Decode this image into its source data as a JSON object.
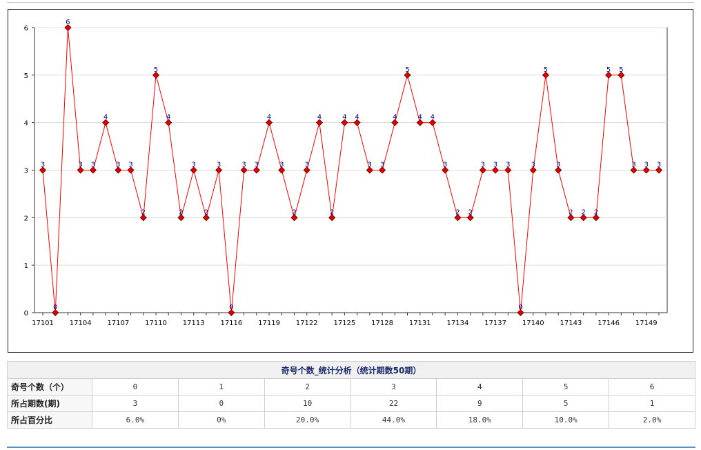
{
  "chart_data": {
    "type": "line",
    "x": [
      "17101",
      "17102",
      "17103",
      "17104",
      "17105",
      "17106",
      "17107",
      "17108",
      "17109",
      "17110",
      "17111",
      "17112",
      "17113",
      "17114",
      "17115",
      "17116",
      "17117",
      "17118",
      "17119",
      "17120",
      "17121",
      "17122",
      "17123",
      "17124",
      "17125",
      "17126",
      "17127",
      "17128",
      "17129",
      "17130",
      "17131",
      "17132",
      "17133",
      "17134",
      "17135",
      "17136",
      "17137",
      "17138",
      "17139",
      "17140",
      "17141",
      "17142",
      "17143",
      "17144",
      "17145",
      "17146",
      "17147",
      "17148",
      "17149",
      "17150"
    ],
    "x_tick_labels": [
      "17101",
      "17104",
      "17107",
      "17110",
      "17113",
      "17116",
      "17119",
      "17122",
      "17125",
      "17128",
      "17131",
      "17134",
      "17137",
      "17140",
      "17143",
      "17146",
      "17149"
    ],
    "values": [
      3,
      0,
      6,
      3,
      3,
      4,
      3,
      3,
      2,
      5,
      4,
      2,
      3,
      2,
      3,
      0,
      3,
      3,
      4,
      3,
      2,
      3,
      4,
      2,
      4,
      4,
      3,
      3,
      4,
      5,
      4,
      4,
      3,
      2,
      2,
      3,
      3,
      3,
      0,
      3,
      5,
      3,
      2,
      2,
      2,
      5,
      5,
      3,
      3,
      3
    ],
    "y_ticks": [
      0,
      1,
      2,
      3,
      4,
      5,
      6
    ],
    "ylim": [
      0,
      6
    ],
    "grid": true,
    "line_color": "#ff0000",
    "marker_color": "#dd0000",
    "label_color": "#000080"
  },
  "table": {
    "title": "奇号个数_统计分析（统计期数50期）",
    "rows": [
      {
        "label": "奇号个数（个）",
        "cells": [
          "0",
          "1",
          "2",
          "3",
          "4",
          "5",
          "6"
        ]
      },
      {
        "label": "所占期数(期)",
        "cells": [
          "3",
          "0",
          "10",
          "22",
          "9",
          "5",
          "1"
        ]
      },
      {
        "label": "所占百分比",
        "cells": [
          "6.0%",
          "0%",
          "20.0%",
          "44.0%",
          "18.0%",
          "10.0%",
          "2.0%"
        ]
      }
    ]
  }
}
